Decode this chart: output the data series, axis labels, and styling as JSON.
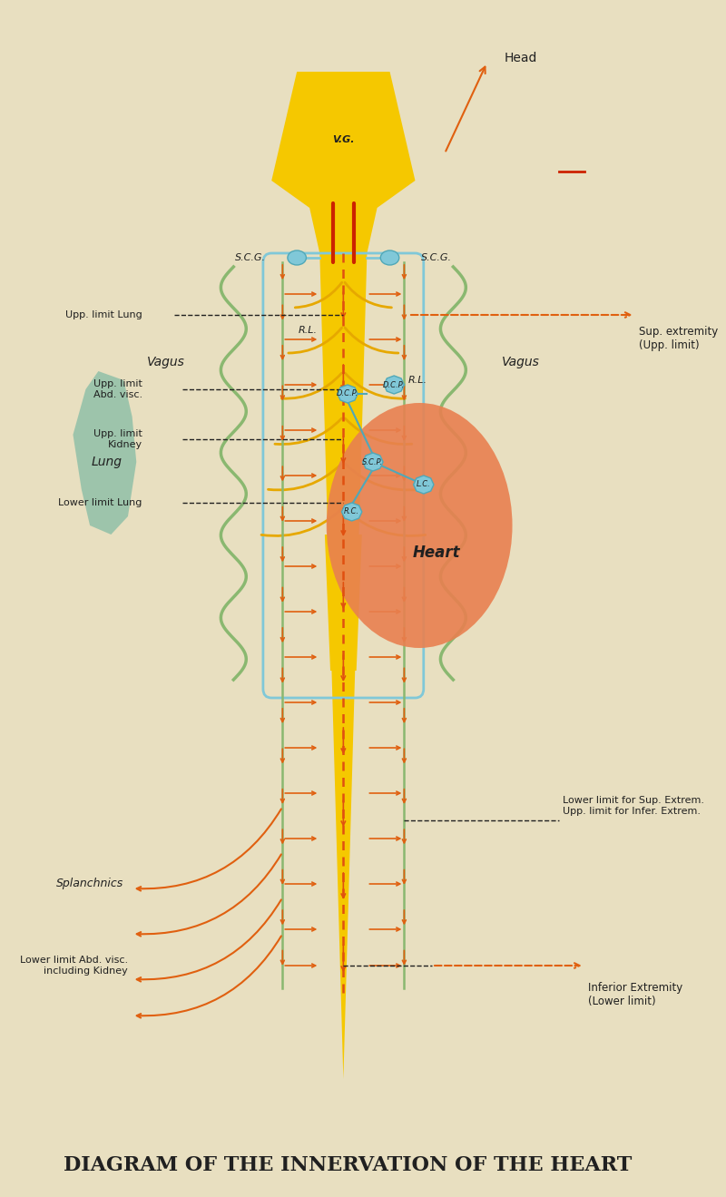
{
  "bg_color": "#e8dfc0",
  "title": "DIAGRAM OF THE INNERVATION OF THE HEART",
  "title_fontsize": 16,
  "colors": {
    "yellow": "#f5c800",
    "yellow_dark": "#e6a800",
    "orange": "#e06010",
    "orange_dashed": "#e05010",
    "red": "#cc2200",
    "green": "#8ab870",
    "cyan": "#80c8d8",
    "teal": "#50a8b8",
    "heart": "#e88050",
    "lung": "#90c0a8",
    "black": "#202020"
  },
  "labels": {
    "head": "Head",
    "vagus_l": "Vagus",
    "vagus_r": "Vagus",
    "scg_l": "S.C.G.",
    "scg_r": "S.C.G.",
    "vg": "V.G.",
    "lung": "Lung",
    "heart": "Heart",
    "dcp_l": "D.C.P.",
    "dcp_r": "D.C.P.",
    "scp": "S.C.P.",
    "rc": "R.C.",
    "lc": "L.C.",
    "rl_l": "R.L.",
    "rl_r": "R.L.",
    "upp_lung": "Upp. limit Lung",
    "upp_abd": "Upp. limit\nAbd. visc.",
    "upp_kidney": "Upp. limit\nKidney",
    "low_lung": "Lower limit Lung",
    "sup_extrem": "Sup. extremity\n(Upp. limit)",
    "low_sup": "Lower limit for Sup. Extrem.\nUpp. limit for Infer. Extrem.",
    "low_abd": "Lower limit Abd. visc.\nincluding Kidney",
    "inf_extrem": "Inferior Extremity\n(Lower limit)",
    "splanchnics": "Splanchnics"
  }
}
